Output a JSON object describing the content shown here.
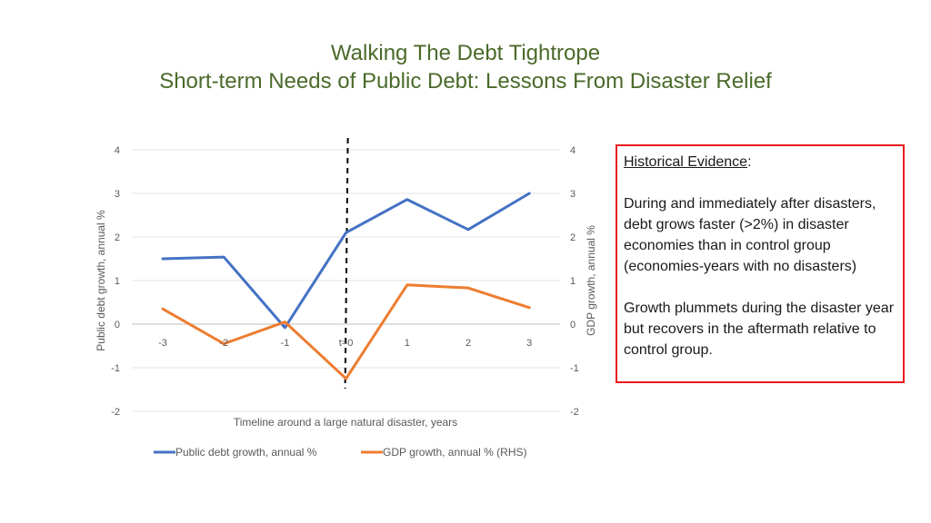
{
  "slide": {
    "title_line1": "Walking The Debt Tightrope",
    "title_line2": "Short-term Needs of Public Debt: Lessons From Disaster Relief"
  },
  "evidence": {
    "heading": "Historical Evidence",
    "heading_suffix": ":",
    "paragraph1": "During and immediately after disasters, debt grows faster (>2%) in disaster economies than in control group (economies-years with no disasters)",
    "paragraph2": "Growth plummets during the disaster year but recovers in the aftermath relative to control group."
  },
  "colors": {
    "debt": "#4472c4",
    "gdp": "#ed7d31",
    "title": "#4a6a2a",
    "box_border": "#e8191e"
  },
  "chart_data": {
    "type": "line",
    "x": [
      "-3",
      "-2",
      "-1",
      "t=0",
      "1",
      "2",
      "3"
    ],
    "xlabel": "Timeline around a large natural disaster, years",
    "ylabel_left": "Public debt growth, annual %",
    "ylabel_right": "GDP growth, annual %",
    "ylim_left": [
      -2,
      4
    ],
    "ylim_right": [
      -2,
      4
    ],
    "yticks_left": [
      "-2",
      "-1",
      "0",
      "1",
      "2",
      "3",
      "4"
    ],
    "yticks_right": [
      "-2",
      "-1",
      "0",
      "1",
      "2",
      "3",
      "4"
    ],
    "grid": true,
    "legend_position": "bottom",
    "event_marker": "t=0",
    "series": [
      {
        "name": "Public debt growth, annual %",
        "axis": "left",
        "color": "#4472c4",
        "values": [
          1.5,
          1.54,
          -0.08,
          2.1,
          2.86,
          2.17,
          3.0
        ]
      },
      {
        "name": "GDP growth, annual % (RHS)",
        "axis": "right",
        "color": "#ed7d31",
        "values": [
          0.35,
          -0.45,
          0.05,
          -1.25,
          0.9,
          0.83,
          0.38
        ]
      }
    ]
  }
}
